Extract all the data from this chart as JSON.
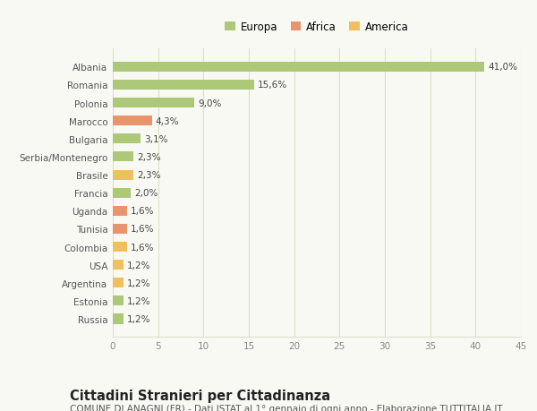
{
  "categories": [
    "Albania",
    "Romania",
    "Polonia",
    "Marocco",
    "Bulgaria",
    "Serbia/Montenegro",
    "Brasile",
    "Francia",
    "Uganda",
    "Tunisia",
    "Colombia",
    "USA",
    "Argentina",
    "Estonia",
    "Russia"
  ],
  "values": [
    41.0,
    15.6,
    9.0,
    4.3,
    3.1,
    2.3,
    2.3,
    2.0,
    1.6,
    1.6,
    1.6,
    1.2,
    1.2,
    1.2,
    1.2
  ],
  "labels": [
    "41,0%",
    "15,6%",
    "9,0%",
    "4,3%",
    "3,1%",
    "2,3%",
    "2,3%",
    "2,0%",
    "1,6%",
    "1,6%",
    "1,6%",
    "1,2%",
    "1,2%",
    "1,2%",
    "1,2%"
  ],
  "continent": [
    "Europa",
    "Europa",
    "Europa",
    "Africa",
    "Europa",
    "Europa",
    "America",
    "Europa",
    "Africa",
    "Africa",
    "America",
    "America",
    "America",
    "Europa",
    "Europa"
  ],
  "colors": {
    "Europa": "#adc878",
    "Africa": "#e8956d",
    "America": "#f0c060"
  },
  "legend_labels": [
    "Europa",
    "Africa",
    "America"
  ],
  "legend_colors": [
    "#adc878",
    "#e8956d",
    "#f0c060"
  ],
  "xlim": [
    0,
    45
  ],
  "xticks": [
    0,
    5,
    10,
    15,
    20,
    25,
    30,
    35,
    40,
    45
  ],
  "title": "Cittadini Stranieri per Cittadinanza",
  "subtitle": "COMUNE DI ANAGNI (FR) - Dati ISTAT al 1° gennaio di ogni anno - Elaborazione TUTTITALIA.IT",
  "background_color": "#f9f9f4",
  "grid_color": "#ddddcc",
  "bar_height": 0.55,
  "label_fontsize": 7.5,
  "title_fontsize": 10.5,
  "subtitle_fontsize": 7.5,
  "tick_fontsize": 7.5,
  "legend_fontsize": 8.5
}
